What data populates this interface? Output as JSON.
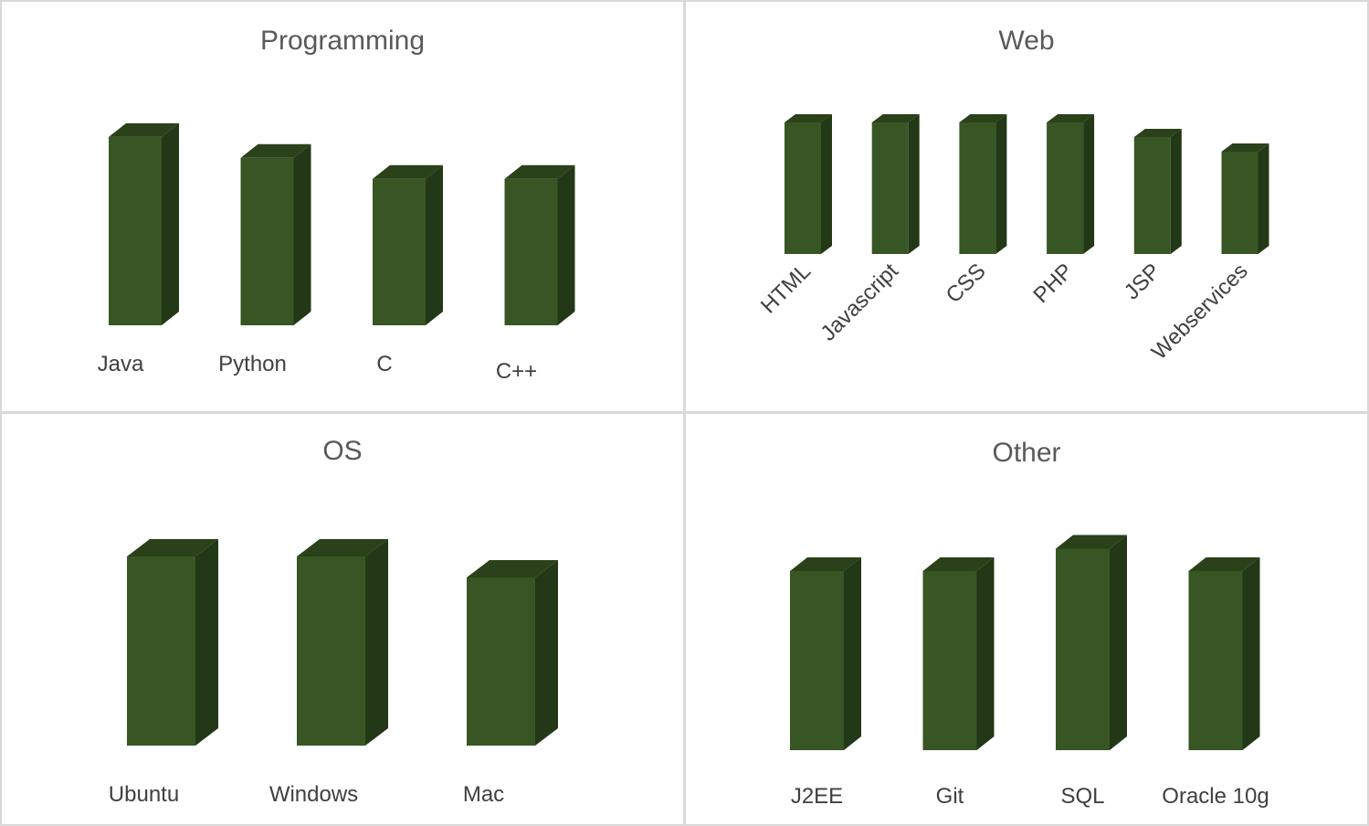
{
  "colors": {
    "front": "#375623",
    "side": "#233816",
    "top": "#2a4119",
    "label": "#404040",
    "title": "#595959"
  },
  "chart_data": [
    {
      "type": "bar",
      "title": "Programming",
      "categories": [
        "Java",
        "Python",
        "C",
        "C++"
      ],
      "values": [
        9,
        8,
        7,
        7
      ],
      "ylim": [
        0,
        10
      ],
      "grid": false,
      "legend": "none"
    },
    {
      "type": "bar",
      "title": "Web",
      "categories": [
        "HTML",
        "Javascript",
        "CSS",
        "PHP",
        "JSP",
        "Webservices"
      ],
      "values": [
        9,
        9,
        9,
        9,
        8,
        7
      ],
      "ylim": [
        0,
        10
      ],
      "grid": false,
      "legend": "none"
    },
    {
      "type": "bar",
      "title": "OS",
      "categories": [
        "Ubuntu",
        "Windows",
        "Mac"
      ],
      "values": [
        9,
        9,
        8
      ],
      "ylim": [
        0,
        10
      ],
      "grid": false,
      "legend": "none"
    },
    {
      "type": "bar",
      "title": "Other",
      "categories": [
        "J2EE",
        "Git",
        "SQL",
        "Oracle 10g"
      ],
      "values": [
        8,
        8,
        9,
        8
      ],
      "ylim": [
        0,
        10
      ],
      "grid": false,
      "legend": "none"
    }
  ]
}
